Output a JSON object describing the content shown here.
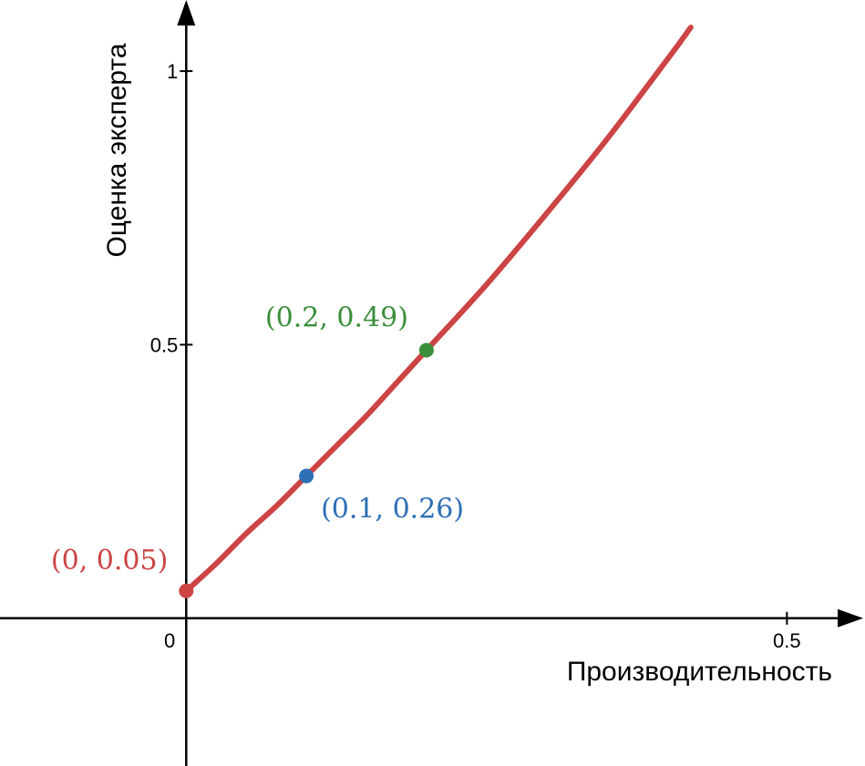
{
  "chart_data": {
    "type": "line",
    "xlabel": "Производительность",
    "ylabel": "Оценка эксперта",
    "xlim": [
      -0.155,
      0.565
    ],
    "ylim": [
      -0.27,
      1.13
    ],
    "x_ticks": [
      {
        "value": 0,
        "label": "0"
      },
      {
        "value": 0.5,
        "label": "0.5"
      }
    ],
    "y_ticks": [
      {
        "value": 0.5,
        "label": "0.5"
      },
      {
        "value": 1,
        "label": "1"
      }
    ],
    "grid": false,
    "curve": {
      "color": "#cc4444",
      "x": [
        0,
        0.025,
        0.05,
        0.075,
        0.1,
        0.125,
        0.15,
        0.175,
        0.2,
        0.25,
        0.3,
        0.35,
        0.4,
        0.42
      ],
      "y": [
        0.05,
        0.1,
        0.155,
        0.205,
        0.26,
        0.315,
        0.37,
        0.43,
        0.49,
        0.61,
        0.74,
        0.875,
        1.02,
        1.08
      ]
    },
    "points": [
      {
        "x": 0,
        "y": 0.05,
        "label": "(0, 0.05)",
        "color": "#cc4444"
      },
      {
        "x": 0.1,
        "y": 0.26,
        "label": "(0.1, 0.26)",
        "color": "#2d6fb5"
      },
      {
        "x": 0.2,
        "y": 0.49,
        "label": "(0.2, 0.49)",
        "color": "#3a8f3a"
      }
    ]
  }
}
